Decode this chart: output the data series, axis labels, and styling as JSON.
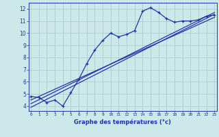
{
  "xlabel": "Graphe des températures (°c)",
  "bg_color": "#cce8e8",
  "grid_color": "#aacccc",
  "line_color": "#2233aa",
  "x_ticks": [
    0,
    1,
    2,
    3,
    4,
    5,
    6,
    7,
    8,
    9,
    10,
    11,
    12,
    13,
    14,
    15,
    16,
    17,
    18,
    19,
    20,
    21,
    22,
    23
  ],
  "y_ticks": [
    4,
    5,
    6,
    7,
    8,
    9,
    10,
    11,
    12
  ],
  "xlim": [
    -0.3,
    23.3
  ],
  "ylim": [
    3.6,
    12.5
  ],
  "series1_x": [
    0,
    1,
    2,
    3,
    4,
    5,
    6,
    7,
    8,
    9,
    10,
    11,
    12,
    13,
    14,
    15,
    16,
    17,
    18,
    19,
    20,
    21,
    22,
    23
  ],
  "series1_y": [
    4.8,
    4.7,
    4.3,
    4.5,
    4.0,
    5.1,
    6.2,
    7.5,
    8.6,
    9.4,
    10.0,
    9.7,
    9.9,
    10.2,
    11.8,
    12.1,
    11.7,
    11.2,
    10.9,
    11.0,
    11.0,
    11.1,
    11.4,
    11.5
  ],
  "line2_x": [
    0,
    23
  ],
  "line2_y": [
    4.5,
    11.3
  ],
  "line3_x": [
    0,
    23
  ],
  "line3_y": [
    3.9,
    11.55
  ],
  "line4_x": [
    0,
    23
  ],
  "line4_y": [
    4.2,
    11.7
  ]
}
